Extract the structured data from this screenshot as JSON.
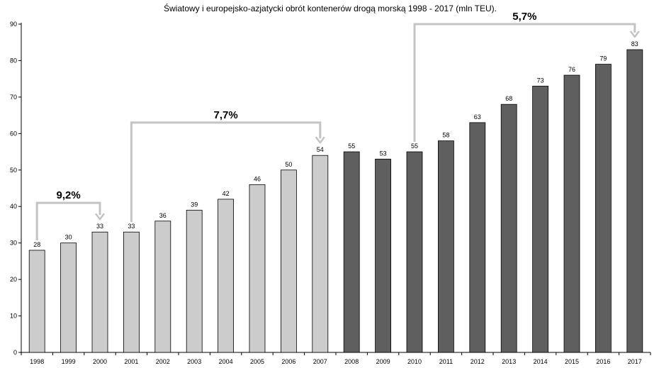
{
  "chart_data": {
    "type": "bar",
    "title": "Światowy i europejsko-azjatycki obrót kontenerów drogą morską 1998 - 2017 (mln TEU).",
    "xlabel": "",
    "ylabel": "",
    "ylim": [
      0,
      90
    ],
    "yticks": [
      "0",
      "10",
      "20",
      "30",
      "40",
      "50",
      "60",
      "70",
      "80",
      "90"
    ],
    "grid": false,
    "categories": [
      "1998",
      "1999",
      "2000",
      "2001",
      "2002",
      "2003",
      "2004",
      "2005",
      "2006",
      "2007",
      "2008",
      "2009",
      "2010",
      "2011",
      "2012",
      "2013",
      "2014",
      "2015",
      "2016",
      "2017"
    ],
    "values": [
      28,
      30,
      33,
      33,
      36,
      39,
      42,
      46,
      50,
      54,
      55,
      53,
      55,
      58,
      63,
      68,
      73,
      76,
      79,
      83
    ],
    "value_labels": [
      "28",
      "30",
      "33",
      "33",
      "36",
      "39",
      "42",
      "46",
      "50",
      "54",
      "55",
      "53",
      "55",
      "58",
      "63",
      "68",
      "73",
      "76",
      "79",
      "83"
    ],
    "colors": {
      "light": "#cccccc",
      "dark": "#5f5f5f",
      "arrow": "#c4c4c4"
    },
    "dark_from_index": 10,
    "annotations": [
      {
        "label": "9,2%",
        "from_index": 0,
        "to_index": 2,
        "y": 41
      },
      {
        "label": "7,7%",
        "from_index": 3,
        "to_index": 9,
        "y": 63
      },
      {
        "label": "5,7%",
        "from_index": 12,
        "to_index": 19,
        "y": 90
      }
    ]
  }
}
